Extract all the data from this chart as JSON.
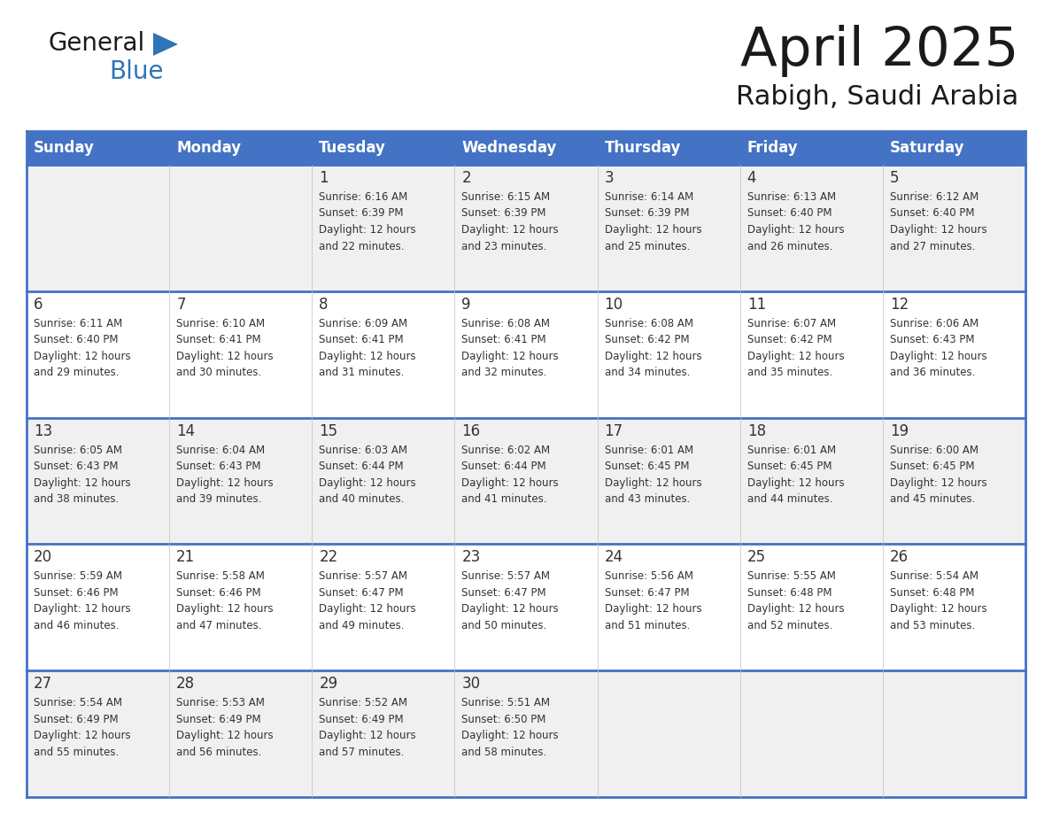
{
  "title": "April 2025",
  "subtitle": "Rabigh, Saudi Arabia",
  "days_of_week": [
    "Sunday",
    "Monday",
    "Tuesday",
    "Wednesday",
    "Thursday",
    "Friday",
    "Saturday"
  ],
  "header_bg": "#4472C4",
  "header_text": "#FFFFFF",
  "cell_bg_white": "#FFFFFF",
  "cell_bg_gray": "#F0F0F0",
  "border_color": "#4472C4",
  "text_color": "#333333",
  "logo_general_color": "#1a1a1a",
  "logo_blue_color": "#2E75B6",
  "logo_triangle_color": "#2E75B6",
  "calendar_data": [
    [
      {
        "day": "",
        "info": ""
      },
      {
        "day": "",
        "info": ""
      },
      {
        "day": "1",
        "info": "Sunrise: 6:16 AM\nSunset: 6:39 PM\nDaylight: 12 hours\nand 22 minutes."
      },
      {
        "day": "2",
        "info": "Sunrise: 6:15 AM\nSunset: 6:39 PM\nDaylight: 12 hours\nand 23 minutes."
      },
      {
        "day": "3",
        "info": "Sunrise: 6:14 AM\nSunset: 6:39 PM\nDaylight: 12 hours\nand 25 minutes."
      },
      {
        "day": "4",
        "info": "Sunrise: 6:13 AM\nSunset: 6:40 PM\nDaylight: 12 hours\nand 26 minutes."
      },
      {
        "day": "5",
        "info": "Sunrise: 6:12 AM\nSunset: 6:40 PM\nDaylight: 12 hours\nand 27 minutes."
      }
    ],
    [
      {
        "day": "6",
        "info": "Sunrise: 6:11 AM\nSunset: 6:40 PM\nDaylight: 12 hours\nand 29 minutes."
      },
      {
        "day": "7",
        "info": "Sunrise: 6:10 AM\nSunset: 6:41 PM\nDaylight: 12 hours\nand 30 minutes."
      },
      {
        "day": "8",
        "info": "Sunrise: 6:09 AM\nSunset: 6:41 PM\nDaylight: 12 hours\nand 31 minutes."
      },
      {
        "day": "9",
        "info": "Sunrise: 6:08 AM\nSunset: 6:41 PM\nDaylight: 12 hours\nand 32 minutes."
      },
      {
        "day": "10",
        "info": "Sunrise: 6:08 AM\nSunset: 6:42 PM\nDaylight: 12 hours\nand 34 minutes."
      },
      {
        "day": "11",
        "info": "Sunrise: 6:07 AM\nSunset: 6:42 PM\nDaylight: 12 hours\nand 35 minutes."
      },
      {
        "day": "12",
        "info": "Sunrise: 6:06 AM\nSunset: 6:43 PM\nDaylight: 12 hours\nand 36 minutes."
      }
    ],
    [
      {
        "day": "13",
        "info": "Sunrise: 6:05 AM\nSunset: 6:43 PM\nDaylight: 12 hours\nand 38 minutes."
      },
      {
        "day": "14",
        "info": "Sunrise: 6:04 AM\nSunset: 6:43 PM\nDaylight: 12 hours\nand 39 minutes."
      },
      {
        "day": "15",
        "info": "Sunrise: 6:03 AM\nSunset: 6:44 PM\nDaylight: 12 hours\nand 40 minutes."
      },
      {
        "day": "16",
        "info": "Sunrise: 6:02 AM\nSunset: 6:44 PM\nDaylight: 12 hours\nand 41 minutes."
      },
      {
        "day": "17",
        "info": "Sunrise: 6:01 AM\nSunset: 6:45 PM\nDaylight: 12 hours\nand 43 minutes."
      },
      {
        "day": "18",
        "info": "Sunrise: 6:01 AM\nSunset: 6:45 PM\nDaylight: 12 hours\nand 44 minutes."
      },
      {
        "day": "19",
        "info": "Sunrise: 6:00 AM\nSunset: 6:45 PM\nDaylight: 12 hours\nand 45 minutes."
      }
    ],
    [
      {
        "day": "20",
        "info": "Sunrise: 5:59 AM\nSunset: 6:46 PM\nDaylight: 12 hours\nand 46 minutes."
      },
      {
        "day": "21",
        "info": "Sunrise: 5:58 AM\nSunset: 6:46 PM\nDaylight: 12 hours\nand 47 minutes."
      },
      {
        "day": "22",
        "info": "Sunrise: 5:57 AM\nSunset: 6:47 PM\nDaylight: 12 hours\nand 49 minutes."
      },
      {
        "day": "23",
        "info": "Sunrise: 5:57 AM\nSunset: 6:47 PM\nDaylight: 12 hours\nand 50 minutes."
      },
      {
        "day": "24",
        "info": "Sunrise: 5:56 AM\nSunset: 6:47 PM\nDaylight: 12 hours\nand 51 minutes."
      },
      {
        "day": "25",
        "info": "Sunrise: 5:55 AM\nSunset: 6:48 PM\nDaylight: 12 hours\nand 52 minutes."
      },
      {
        "day": "26",
        "info": "Sunrise: 5:54 AM\nSunset: 6:48 PM\nDaylight: 12 hours\nand 53 minutes."
      }
    ],
    [
      {
        "day": "27",
        "info": "Sunrise: 5:54 AM\nSunset: 6:49 PM\nDaylight: 12 hours\nand 55 minutes."
      },
      {
        "day": "28",
        "info": "Sunrise: 5:53 AM\nSunset: 6:49 PM\nDaylight: 12 hours\nand 56 minutes."
      },
      {
        "day": "29",
        "info": "Sunrise: 5:52 AM\nSunset: 6:49 PM\nDaylight: 12 hours\nand 57 minutes."
      },
      {
        "day": "30",
        "info": "Sunrise: 5:51 AM\nSunset: 6:50 PM\nDaylight: 12 hours\nand 58 minutes."
      },
      {
        "day": "",
        "info": ""
      },
      {
        "day": "",
        "info": ""
      },
      {
        "day": "",
        "info": ""
      }
    ]
  ]
}
